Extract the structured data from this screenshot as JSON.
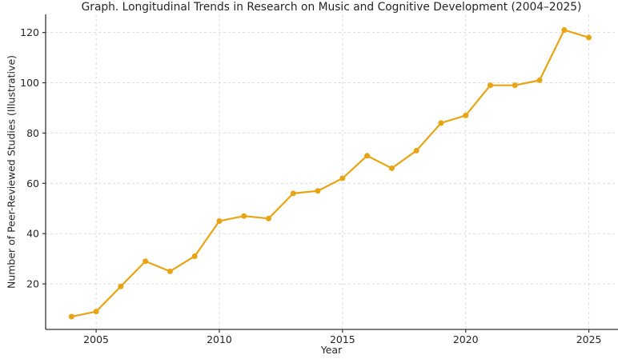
{
  "chart_data": {
    "type": "line",
    "title": "Graph. Longitudinal Trends in Research on Music and Cognitive Development (2004–2025)",
    "xlabel": "Year",
    "ylabel": "Number of Peer-Reviewed Studies (Illustrative)",
    "x": [
      2004,
      2005,
      2006,
      2007,
      2008,
      2009,
      2010,
      2011,
      2012,
      2013,
      2014,
      2015,
      2016,
      2017,
      2018,
      2019,
      2020,
      2021,
      2022,
      2023,
      2024,
      2025
    ],
    "series": [
      {
        "name": "Peer-Reviewed Studies",
        "values": [
          7,
          9,
          19,
          29,
          25,
          31,
          45,
          47,
          46,
          56,
          57,
          62,
          71,
          66,
          73,
          84,
          87,
          99,
          99,
          101,
          121,
          118
        ]
      }
    ],
    "xticks": [
      2005,
      2010,
      2015,
      2020,
      2025
    ],
    "yticks": [
      20,
      40,
      60,
      80,
      100,
      120
    ],
    "xlim": [
      2002.95,
      2026.15
    ],
    "ylim": [
      1.9,
      127.2
    ],
    "grid": true,
    "legend": "none",
    "colors": {
      "line": "#E8A412",
      "marker": "#E8A412",
      "grid": "#DCDCDC",
      "axis": "#333333",
      "text": "#262626",
      "background": "#FFFFFF"
    }
  }
}
